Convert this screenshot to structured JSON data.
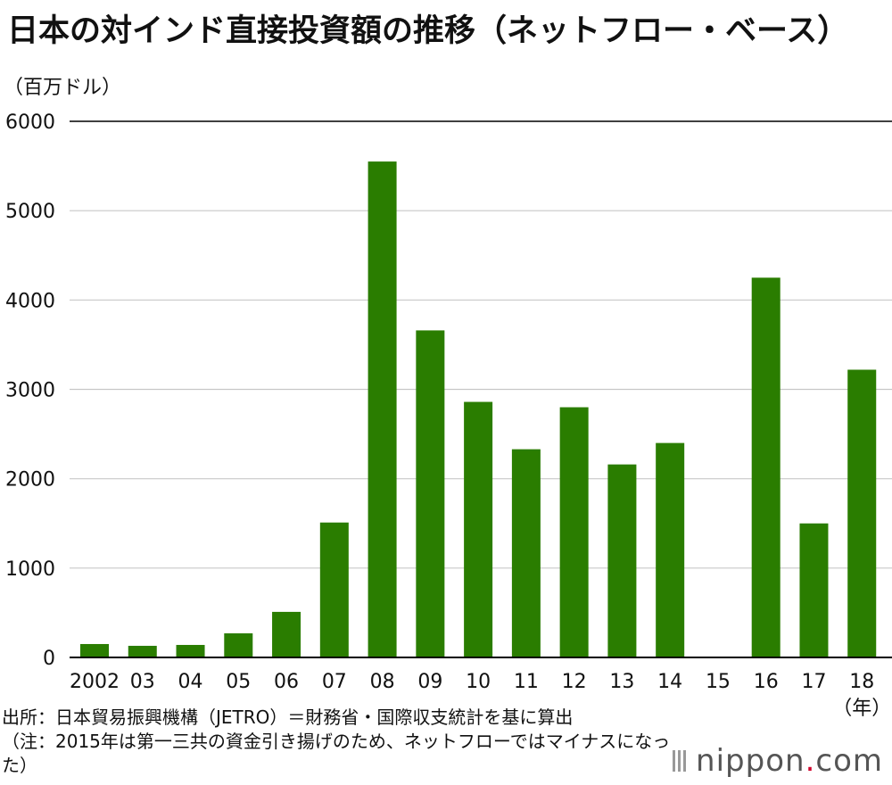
{
  "title": "日本の対インド直接投資額の推移（ネットフロー・ベース）",
  "unit_label": "（百万ドル）",
  "x_unit_label": "（年）",
  "source": "出所：日本貿易振興機構（JETRO）＝財務省・国際収支統計を基に算出",
  "note": "（注：2015年は第一三共の資金引き揚げのため、ネットフローではマイナスになった）",
  "logo": {
    "text": "nippon",
    "dot": ".",
    "suffix": "com"
  },
  "colors": {
    "bar": "#2a7d00",
    "grid": "#c8c8c8",
    "axis": "#000000"
  },
  "chart_data": {
    "type": "bar",
    "categories": [
      "2002",
      "03",
      "04",
      "05",
      "06",
      "07",
      "08",
      "09",
      "10",
      "11",
      "12",
      "13",
      "14",
      "15",
      "16",
      "17",
      "18"
    ],
    "values": [
      150,
      130,
      140,
      270,
      510,
      1510,
      5550,
      3660,
      2860,
      2330,
      2800,
      2160,
      2400,
      null,
      4250,
      1500,
      3220
    ],
    "yticks": [
      0,
      1000,
      2000,
      3000,
      4000,
      5000,
      6000
    ],
    "ylim": [
      0,
      6000
    ],
    "grid": true
  }
}
